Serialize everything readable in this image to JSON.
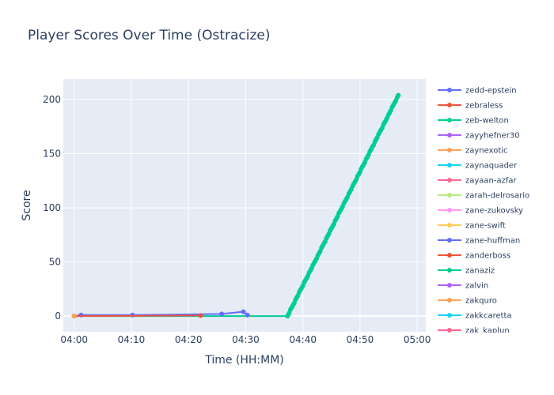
{
  "chart_data": {
    "type": "line",
    "title": "Player Scores Over Time (Ostracize)",
    "xlabel": "Time (HH:MM)",
    "ylabel": "Score",
    "x_ticks": [
      "04:00",
      "04:10",
      "04:20",
      "04:30",
      "04:40",
      "04:50",
      "05:00"
    ],
    "y_ticks": [
      0,
      50,
      100,
      150,
      200
    ],
    "xlim_minutes": [
      -1.9,
      61.5
    ],
    "ylim": [
      -14.5,
      219
    ],
    "grid": true,
    "legend_position": "right",
    "series": [
      {
        "name": "zedd-epstein",
        "color": "#636efa",
        "points": [
          [
            0.0,
            0
          ],
          [
            1.2,
            1
          ],
          [
            10.2,
            1
          ],
          [
            25.8,
            2
          ],
          [
            29.6,
            4
          ],
          [
            30.3,
            1
          ]
        ]
      },
      {
        "name": "zebraless",
        "color": "#ef553b",
        "points": [
          [
            0.0,
            0
          ],
          [
            22.1,
            0.5
          ]
        ]
      },
      {
        "name": "zeb-welton",
        "color": "#00cc96",
        "points": "ramp"
      },
      {
        "name": "zayyhefner30",
        "color": "#ab63fa",
        "points": []
      },
      {
        "name": "zaynexotic",
        "color": "#ffa15a",
        "points": [
          [
            0.0,
            0
          ]
        ]
      },
      {
        "name": "zaynaquader",
        "color": "#19d3f3",
        "points": []
      },
      {
        "name": "zayaan-azfar",
        "color": "#ff6692",
        "points": []
      },
      {
        "name": "zarah-delrosario",
        "color": "#b6e880",
        "points": []
      },
      {
        "name": "zane-zukovsky",
        "color": "#ff97ff",
        "points": []
      },
      {
        "name": "zane-swift",
        "color": "#fecb52",
        "points": []
      },
      {
        "name": "zane-huffman",
        "color": "#636efa",
        "points": []
      },
      {
        "name": "zanderboss",
        "color": "#ef553b",
        "points": []
      },
      {
        "name": "zanaziz",
        "color": "#00cc96",
        "points": []
      },
      {
        "name": "zalvin",
        "color": "#ab63fa",
        "points": []
      },
      {
        "name": "zakquro",
        "color": "#ffa15a",
        "points": []
      },
      {
        "name": "zakkcaretta",
        "color": "#19d3f3",
        "points": []
      },
      {
        "name": "zak_kaplun",
        "color": "#ff6692",
        "points": []
      }
    ],
    "ramp_series": {
      "flat_start": [
        0.0,
        0
      ],
      "flat_end": [
        37.3,
        0
      ],
      "rise_start": [
        37.4,
        1
      ],
      "rise_end": [
        56.7,
        204
      ]
    }
  }
}
